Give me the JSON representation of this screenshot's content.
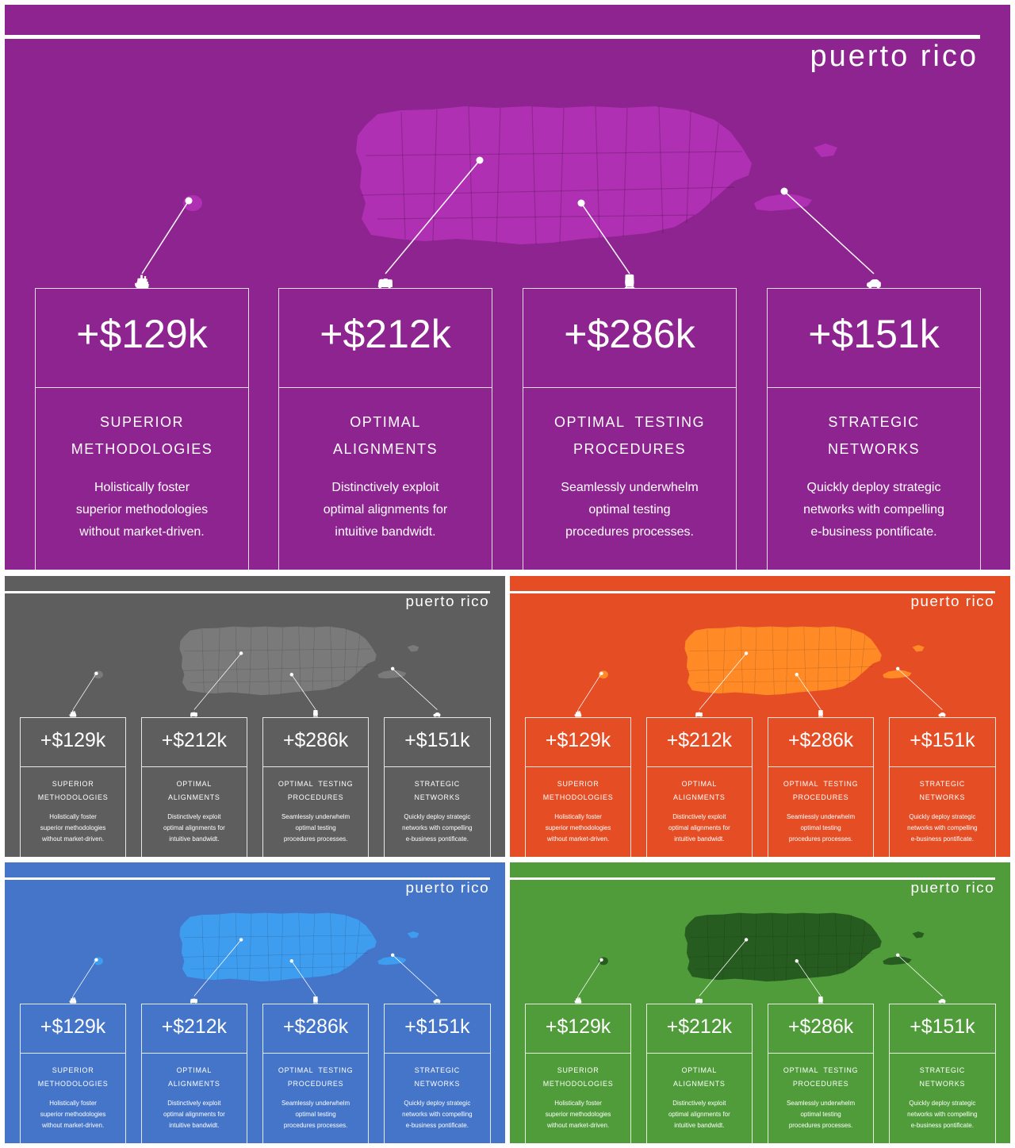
{
  "title": "puerto rico",
  "cards": [
    {
      "value": "+$129k",
      "heading_line1": "SUPERIOR",
      "heading_line2": "METHODOLOGIES",
      "desc_line1": "Holistically foster",
      "desc_line2": "superior methodologies",
      "desc_line3": "without market-driven.",
      "icon": "ship-icon",
      "icon_glyph": "🚢"
    },
    {
      "value": "+$212k",
      "heading_line1": "OPTIMAL",
      "heading_line2": "ALIGNMENTS",
      "desc_line1": "Distinctively exploit",
      "desc_line2": "optimal alignments for",
      "desc_line3": "intuitive bandwidt.",
      "icon": "bus-icon",
      "icon_glyph": "🚌"
    },
    {
      "value": "+$286k",
      "heading_line1": "OPTIMAL  TESTING",
      "heading_line2": "PROCEDURES",
      "desc_line1": "Seamlessly underwhelm",
      "desc_line2": "optimal testing",
      "desc_line3": "procedures processes.",
      "icon": "train-icon",
      "icon_glyph": "🚆"
    },
    {
      "value": "+$151k",
      "heading_line1": "STRATEGIC",
      "heading_line2": "NETWORKS",
      "desc_line1": "Quickly deploy strategic",
      "desc_line2": "networks with compelling",
      "desc_line3": "e-business pontificate.",
      "icon": "car-icon",
      "icon_glyph": "🚗"
    }
  ],
  "themes": [
    {
      "name": "purple",
      "background": "#8e2490",
      "map": "#b030b4"
    },
    {
      "name": "gray",
      "background": "#5e5e5e",
      "map": "#7a7a7a"
    },
    {
      "name": "orange",
      "background": "#e54e24",
      "map": "#ff8a26"
    },
    {
      "name": "blue",
      "background": "#4575c9",
      "map": "#3f9df0"
    },
    {
      "name": "green",
      "background": "#509c3a",
      "map": "#275c20"
    }
  ]
}
